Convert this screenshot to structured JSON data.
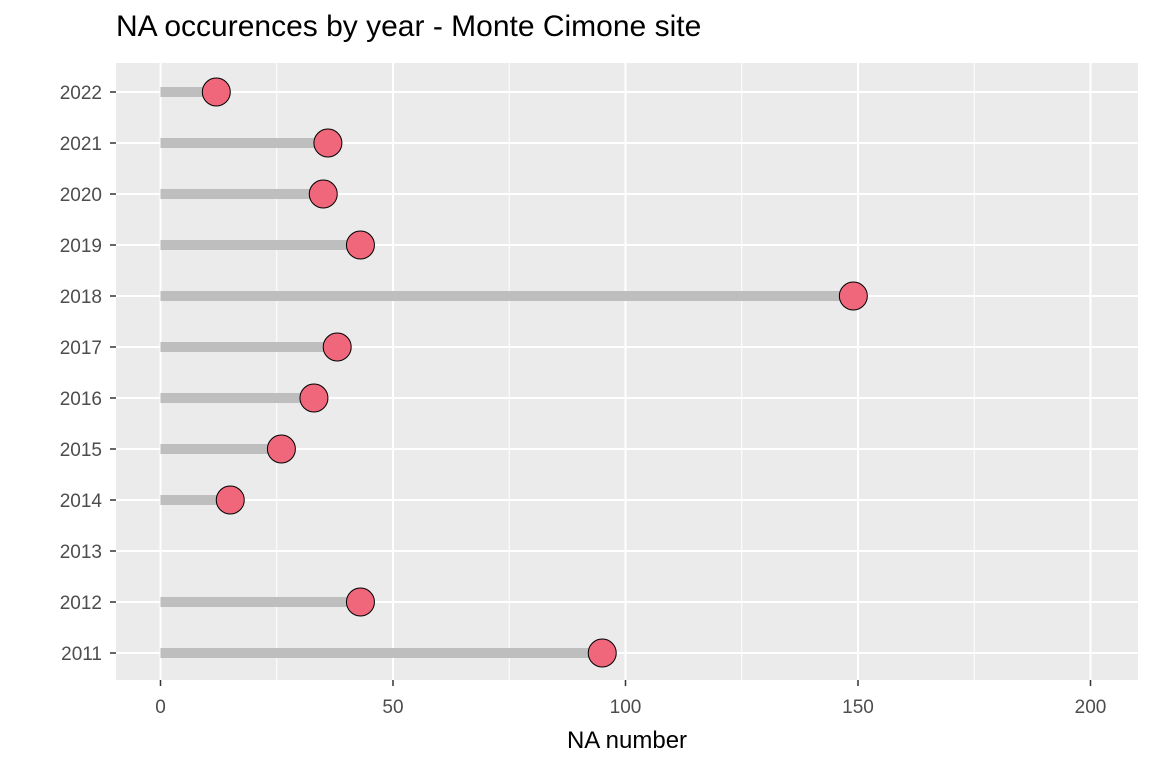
{
  "chart_data": {
    "type": "lollipop",
    "title": "NA occurences by year - Monte Cimone site",
    "xlabel": "NA number",
    "ylabel": "",
    "categories": [
      "2011",
      "2012",
      "2013",
      "2014",
      "2015",
      "2016",
      "2017",
      "2018",
      "2019",
      "2020",
      "2021",
      "2022"
    ],
    "values": [
      95,
      43,
      null,
      15,
      26,
      33,
      38,
      149,
      43,
      35,
      36,
      12
    ],
    "xlim": [
      -9.5,
      210
    ],
    "xticks": [
      0,
      50,
      100,
      150,
      200
    ],
    "grid": true,
    "colors": {
      "panel_background": "#ebebeb",
      "grid_line": "#ffffff",
      "stem": "#bebebe",
      "point_fill": "#f0677b",
      "point_stroke": "#000000",
      "tick_mark": "#333333"
    }
  }
}
